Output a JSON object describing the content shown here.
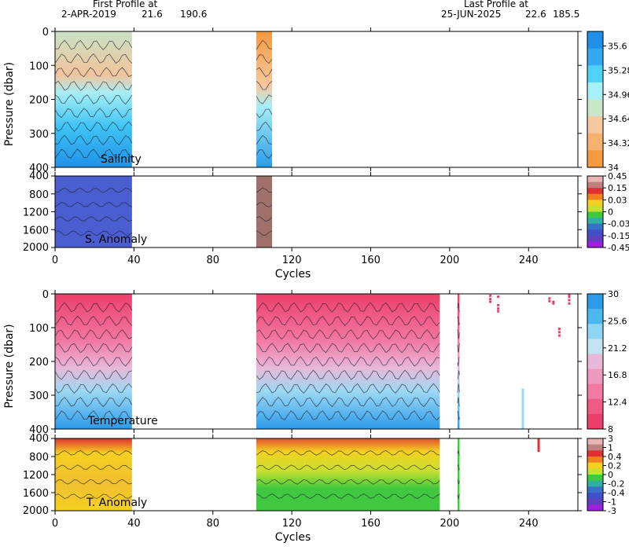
{
  "header": {
    "first_label": "First Profile at",
    "first_date": "2-APR-2019",
    "first_lat": "21.6",
    "first_lon": "190.6",
    "last_label": "Last Profile at",
    "last_date": "25-JUN-2025",
    "last_lat": "22.6",
    "last_lon": "185.5"
  },
  "chart_data": [
    {
      "type": "heatmap",
      "panel": "Salinity",
      "label": "Salinity",
      "ylabel": "Pressure (dbar)",
      "xlim": [
        0,
        265
      ],
      "ylim": [
        400,
        0
      ],
      "yticks": [
        0,
        100,
        200,
        300,
        400
      ],
      "coverage": [
        [
          0,
          39
        ],
        [
          102,
          110
        ]
      ],
      "colorbar": {
        "ticks": [
          "34",
          "34.32",
          "34.64",
          "34.96",
          "35.28",
          "35.6"
        ],
        "colors": [
          "#1f8fe8",
          "#33aaf0",
          "#4fd2f7",
          "#a8f0f7",
          "#c9e6c9",
          "#f5c8a0",
          "#f7b16e",
          "#f59a3e"
        ]
      }
    },
    {
      "type": "heatmap",
      "panel": "S. Anomaly",
      "label": "S. Anomaly",
      "ylim": [
        2000,
        400
      ],
      "yticks": [
        400,
        800,
        1200,
        1600,
        2000
      ],
      "xticks": [
        0,
        40,
        80,
        120,
        160,
        200,
        240
      ],
      "xlabel": "Cycles",
      "coverage": [
        [
          0,
          39
        ],
        [
          102,
          110
        ]
      ],
      "colorbar": {
        "ticks": [
          "0.45",
          "0.15",
          "0.03",
          "0",
          "-0.03",
          "-0.15",
          "-0.45"
        ],
        "colors": [
          "#e8b4b4",
          "#c08080",
          "#e03030",
          "#f08020",
          "#f5d020",
          "#c8e030",
          "#40c840",
          "#30b0a0",
          "#3870c8",
          "#4050c8",
          "#6040c0",
          "#a020e0"
        ]
      }
    },
    {
      "type": "heatmap",
      "panel": "Temperature",
      "label": "Temperature",
      "ylabel": "Pressure (dbar)",
      "xlim": [
        0,
        265
      ],
      "ylim": [
        400,
        0
      ],
      "yticks": [
        0,
        100,
        200,
        300,
        400
      ],
      "coverage": [
        [
          0,
          39
        ],
        [
          102,
          195
        ],
        [
          204,
          205
        ]
      ],
      "colorbar": {
        "ticks": [
          "8",
          "12.4",
          "16.8",
          "21.2",
          "25.6",
          "30"
        ],
        "colors": [
          "#2b9be8",
          "#4cb8f0",
          "#8fd6f5",
          "#c0e4f0",
          "#e8b8d8",
          "#f099c0",
          "#f27aa3",
          "#f05a85",
          "#ec3e6a"
        ]
      }
    },
    {
      "type": "heatmap",
      "panel": "T. Anomaly",
      "label": "T. Anomaly",
      "ylim": [
        2000,
        400
      ],
      "yticks": [
        400,
        800,
        1200,
        1600,
        2000
      ],
      "xticks": [
        0,
        40,
        80,
        120,
        160,
        200,
        240
      ],
      "xlabel": "Cycles",
      "coverage": [
        [
          0,
          39
        ],
        [
          102,
          195
        ],
        [
          204,
          205
        ]
      ],
      "colorbar": {
        "ticks": [
          "3",
          "1",
          "0.4",
          "0.2",
          "0",
          "-0.2",
          "-0.4",
          "-1",
          "-3"
        ],
        "colors": [
          "#e8b4b4",
          "#c08080",
          "#e03030",
          "#f08020",
          "#f5d020",
          "#c8e030",
          "#40c840",
          "#30b0a0",
          "#3870c8",
          "#4050c8",
          "#6040c0",
          "#a020e0"
        ]
      }
    }
  ]
}
